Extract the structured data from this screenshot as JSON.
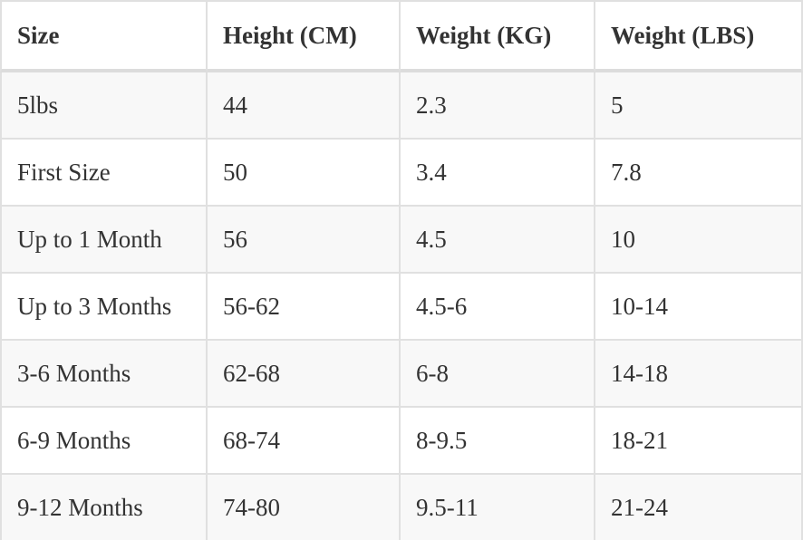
{
  "table": {
    "header": [
      "Size",
      "Height (CM)",
      "Weight (KG)",
      "Weight (LBS)"
    ],
    "rows": [
      [
        "5lbs",
        "44",
        "2.3",
        "5"
      ],
      [
        "First Size",
        "50",
        "3.4",
        "7.8"
      ],
      [
        "Up to 1 Month",
        "56",
        "4.5",
        "10"
      ],
      [
        "Up to 3 Months",
        "56-62",
        "4.5-6",
        "10-14"
      ],
      [
        "3-6 Months",
        "62-68",
        "6-8",
        "14-18"
      ],
      [
        "6-9 Months",
        "68-74",
        "8-9.5",
        "18-21"
      ],
      [
        "9-12 Months",
        "74-80",
        "9.5-11",
        "21-24"
      ]
    ]
  }
}
